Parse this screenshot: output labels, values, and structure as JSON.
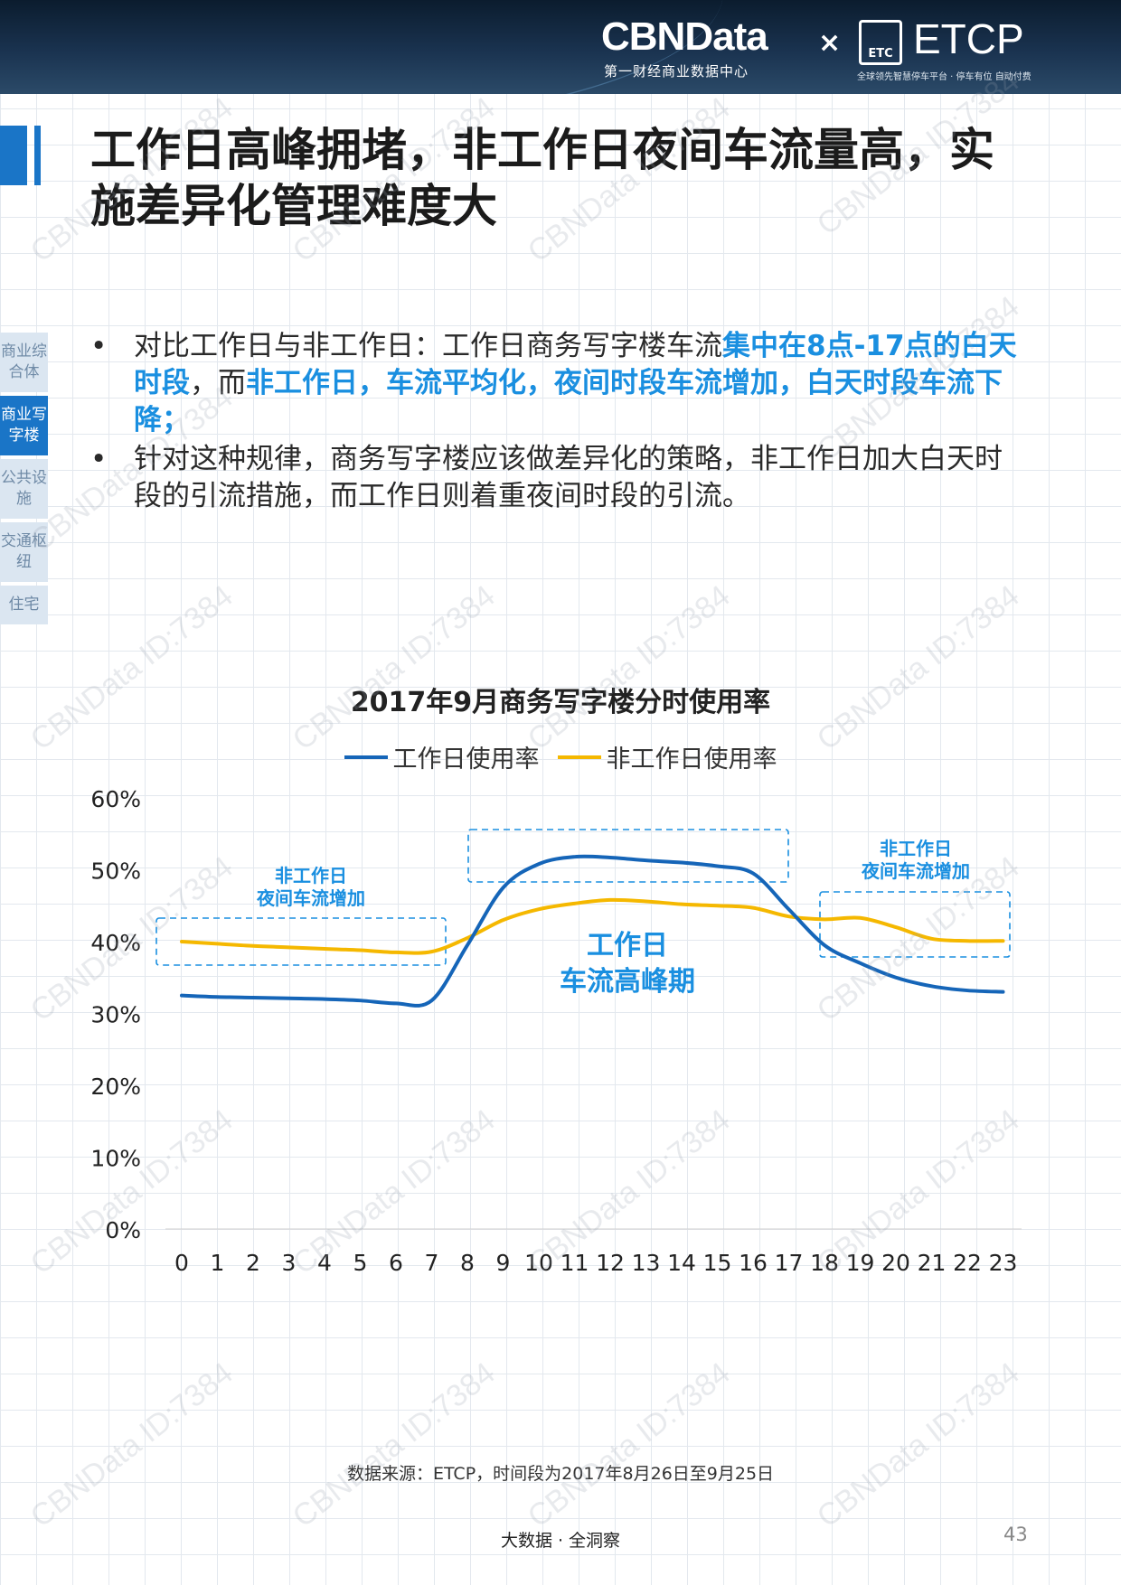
{
  "header": {
    "brand": "CBNData",
    "brand_sub": "第一财经商业数据中心",
    "times": "×",
    "partner_badge": "ETC",
    "partner": "ETCP",
    "partner_sub": "全球领先智慧停车平台 · 停车有位 自动付费"
  },
  "title": "工作日高峰拥堵，非工作日夜间车流量高，实施差异化管理难度大",
  "sidenav": [
    {
      "label": "商业综合体",
      "active": false
    },
    {
      "label": "商业写字楼",
      "active": true
    },
    {
      "label": "公共设施",
      "active": false
    },
    {
      "label": "交通枢纽",
      "active": false
    },
    {
      "label": "住宅",
      "active": false
    }
  ],
  "bullets": {
    "marker": "•",
    "b1_p1": "对比工作日与非工作日：工作日商务写字楼车流",
    "b1_h1": "集中在8点-17点的白天时段",
    "b1_p2": "，而",
    "b1_h2": "非工作日，车流平均化，夜间时段车流增加，白天时段车流下降；",
    "b2": "针对这种规律，商务写字楼应该做差异化的策略，非工作日加大白天时段的引流措施，而工作日则着重夜间时段的引流。"
  },
  "chart_data": {
    "type": "line",
    "title": "2017年9月商务写字楼分时使用率",
    "x": [
      "0",
      "1",
      "2",
      "3",
      "4",
      "5",
      "6",
      "7",
      "8",
      "9",
      "10",
      "11",
      "12",
      "13",
      "14",
      "15",
      "16",
      "17",
      "18",
      "19",
      "20",
      "21",
      "22",
      "23"
    ],
    "y_ticks": [
      "60%",
      "50%",
      "40%",
      "30%",
      "20%",
      "10%",
      "0%"
    ],
    "ylim": [
      0,
      60
    ],
    "grid": true,
    "legend_position": "top",
    "series": [
      {
        "name": "工作日使用率",
        "color": "#1565b8",
        "values": [
          32.5,
          32.3,
          32.2,
          32.1,
          32.0,
          31.8,
          31.4,
          31.8,
          39.5,
          47.5,
          50.8,
          51.8,
          51.7,
          51.3,
          51.0,
          50.5,
          49.5,
          44.5,
          39.5,
          37.0,
          35.0,
          33.8,
          33.2,
          33.0
        ]
      },
      {
        "name": "非工作日使用率",
        "color": "#f5b800",
        "values": [
          40.0,
          39.7,
          39.4,
          39.2,
          39.0,
          38.8,
          38.5,
          38.6,
          40.5,
          43.0,
          44.5,
          45.3,
          45.8,
          45.6,
          45.2,
          45.0,
          44.7,
          43.5,
          43.1,
          43.3,
          42.0,
          40.4,
          40.1,
          40.1
        ]
      }
    ],
    "annotations": [
      {
        "lines": [
          "非工作日",
          "夜间车流增加"
        ]
      },
      {
        "lines": [
          "工作日",
          "车流高峰期"
        ]
      },
      {
        "lines": [
          "非工作日",
          "夜间车流增加"
        ]
      }
    ]
  },
  "source": "数据来源：ETCP，时间段为2017年8月26日至9月25日",
  "footer": "大数据 · 全洞察",
  "page_number": "43",
  "watermark": "CBNData ID:7384"
}
